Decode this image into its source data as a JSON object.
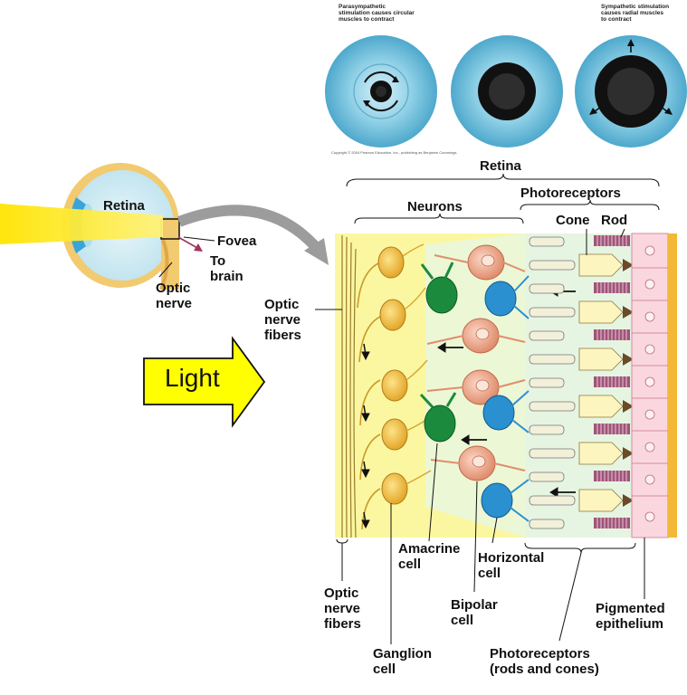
{
  "pupil_panel": {
    "parasympathetic_caption": "Parasympathetic\nstimulation causes circular\nmuscles to contract",
    "sympathetic_caption": "Sympathetic stimulation\ncauses radial muscles\nto contract",
    "copyright": "Copyright © 2004 Pearson Education, Inc., publishing as Benjamin Cummings."
  },
  "eye": {
    "retina_label": "Retina",
    "fovea_label": "Fovea",
    "to_brain_label": "To\nbrain",
    "optic_nerve_label": "Optic\nnerve"
  },
  "light_arrow_label": "Light",
  "retina_section": {
    "title": "Retina",
    "neurons": "Neurons",
    "photoreceptors": "Photoreceptors",
    "cone": "Cone",
    "rod": "Rod",
    "optic_nerve_fibers_left": "Optic\nnerve\nfibers",
    "optic_nerve_fibers_bottom": "Optic\nnerve\nfibers",
    "amacrine_cell": "Amacrine\ncell",
    "horizontal_cell": "Horizontal\ncell",
    "bipolar_cell": "Bipolar\ncell",
    "ganglion_cell": "Ganglion\ncell",
    "photoreceptors_bottom": "Photoreceptors\n(rods and cones)",
    "pigmented_epithelium": "Pigmented\nepithelium"
  },
  "colors": {
    "iris": "#7cc6e0",
    "background_yellow": "#fbf7a0",
    "ganglion": "#f0c04a",
    "bipolar": "#f4b59a",
    "amacrine": "#1b8a3c",
    "horizontal": "#2a90d0",
    "epithelium": "#fad7df",
    "epithelium_edge": "#f4b838",
    "rod_stripe": "#7a3a58"
  }
}
